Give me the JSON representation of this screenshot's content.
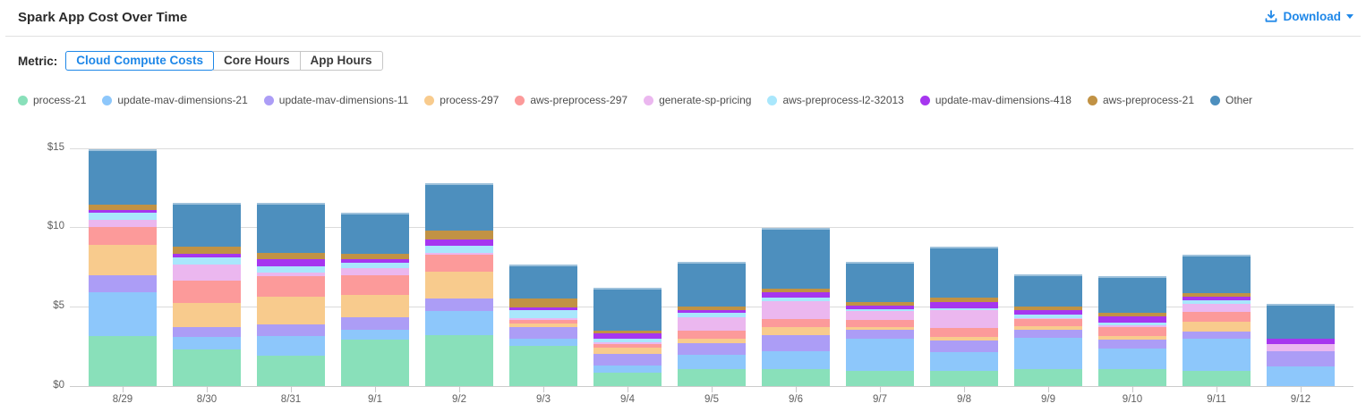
{
  "header": {
    "title": "Spark App Cost Over Time",
    "download_label": "Download"
  },
  "metric": {
    "label": "Metric:",
    "options": [
      {
        "label": "Cloud Compute Costs",
        "selected": true
      },
      {
        "label": "Core Hours",
        "selected": false
      },
      {
        "label": "App Hours",
        "selected": false
      }
    ]
  },
  "colors": {
    "accent": "#1e87e8"
  },
  "chart_data": {
    "type": "bar",
    "stacked": true,
    "title": "Spark App Cost Over Time",
    "xlabel": "",
    "ylabel": "",
    "ylim": [
      0,
      15
    ],
    "y_tick_values": [
      0,
      5,
      10,
      15
    ],
    "y_tick_labels": [
      "$0",
      "$5",
      "$10",
      "$15"
    ],
    "grid": true,
    "legend_position": "top",
    "categories": [
      "8/29",
      "8/30",
      "8/31",
      "9/1",
      "9/2",
      "9/3",
      "9/4",
      "9/5",
      "9/6",
      "9/7",
      "9/8",
      "9/9",
      "9/10",
      "9/11",
      "9/12"
    ],
    "series": [
      {
        "name": "process-21",
        "color": "#89e0ba",
        "values": [
          3.15,
          2.3,
          1.9,
          2.9,
          3.2,
          2.5,
          0.85,
          1.05,
          1.05,
          0.95,
          0.95,
          1.05,
          1.05,
          0.95,
          0.0
        ]
      },
      {
        "name": "update-mav-dimensions-21",
        "color": "#8dc7fb",
        "values": [
          2.75,
          0.8,
          1.25,
          0.65,
          1.5,
          0.45,
          0.45,
          0.9,
          1.15,
          2.05,
          1.2,
          2.0,
          1.3,
          2.05,
          1.2
        ]
      },
      {
        "name": "update-mav-dimensions-11",
        "color": "#ac9df6",
        "values": [
          1.1,
          0.6,
          0.75,
          0.8,
          0.8,
          0.75,
          0.7,
          0.75,
          1.0,
          0.55,
          0.7,
          0.5,
          0.55,
          0.45,
          1.0
        ]
      },
      {
        "name": "process-297",
        "color": "#f8cb8d",
        "values": [
          1.9,
          1.55,
          1.75,
          1.4,
          1.7,
          0.25,
          0.4,
          0.25,
          0.5,
          0.15,
          0.25,
          0.2,
          0.25,
          0.6,
          0.0
        ]
      },
      {
        "name": "aws-preprocess-297",
        "color": "#fc9a9a",
        "values": [
          1.1,
          1.4,
          1.25,
          1.2,
          1.1,
          0.2,
          0.25,
          0.55,
          0.5,
          0.45,
          0.55,
          0.45,
          0.55,
          0.6,
          0.0
        ]
      },
      {
        "name": "generate-sp-pricing",
        "color": "#ebb7ef",
        "values": [
          0.45,
          1.0,
          0.25,
          0.45,
          0.1,
          0.1,
          0.1,
          0.85,
          1.15,
          0.55,
          1.1,
          0.05,
          0.1,
          0.5,
          0.45
        ]
      },
      {
        "name": "aws-preprocess-l2-32013",
        "color": "#a9e7fc",
        "values": [
          0.45,
          0.45,
          0.4,
          0.35,
          0.45,
          0.5,
          0.2,
          0.25,
          0.2,
          0.15,
          0.15,
          0.25,
          0.2,
          0.25,
          0.0
        ]
      },
      {
        "name": "update-mav-dimensions-418",
        "color": "#a636ef",
        "values": [
          0.2,
          0.25,
          0.45,
          0.25,
          0.4,
          0.2,
          0.35,
          0.2,
          0.35,
          0.2,
          0.4,
          0.25,
          0.4,
          0.2,
          0.3
        ]
      },
      {
        "name": "aws-preprocess-21",
        "color": "#c19244",
        "values": [
          0.35,
          0.45,
          0.4,
          0.35,
          0.55,
          0.55,
          0.2,
          0.2,
          0.25,
          0.25,
          0.25,
          0.25,
          0.2,
          0.25,
          0.0
        ]
      },
      {
        "name": "Other",
        "color": "#4d8fbe",
        "values": [
          3.5,
          2.75,
          3.15,
          2.6,
          3.0,
          2.15,
          2.7,
          2.8,
          3.8,
          2.5,
          3.25,
          2.05,
          2.3,
          2.4,
          2.2
        ]
      }
    ]
  }
}
